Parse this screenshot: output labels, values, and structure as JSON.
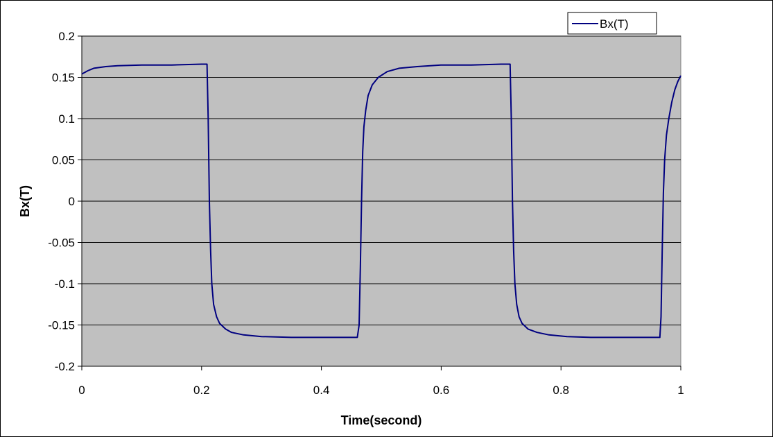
{
  "chart_data": {
    "type": "line",
    "title": "",
    "xlabel": "Time(second)",
    "ylabel": "Bx(T)",
    "xlim": [
      0,
      1
    ],
    "ylim": [
      -0.2,
      0.2
    ],
    "x_ticks": [
      "0",
      "0.2",
      "0.4",
      "0.6",
      "0.8",
      "1"
    ],
    "x_tick_values": [
      0,
      0.2,
      0.4,
      0.6,
      0.8,
      1
    ],
    "y_ticks": [
      "0.2",
      "0.15",
      "0.1",
      "0.05",
      "0",
      "-0.05",
      "-0.1",
      "-0.15",
      "-0.2"
    ],
    "y_tick_values": [
      0.2,
      0.15,
      0.1,
      0.05,
      0,
      -0.05,
      -0.1,
      -0.15,
      -0.2
    ],
    "grid": "horizontal",
    "legend_position": "top-right",
    "plot_background": "#c0c0c0",
    "series": [
      {
        "name": "Bx(T)",
        "color": "#000080",
        "x": [
          0,
          0.01,
          0.02,
          0.04,
          0.06,
          0.1,
          0.15,
          0.2,
          0.209,
          0.211,
          0.213,
          0.215,
          0.217,
          0.22,
          0.225,
          0.23,
          0.24,
          0.25,
          0.27,
          0.3,
          0.35,
          0.4,
          0.46,
          0.463,
          0.465,
          0.467,
          0.469,
          0.471,
          0.474,
          0.478,
          0.485,
          0.495,
          0.51,
          0.53,
          0.56,
          0.6,
          0.65,
          0.7,
          0.715,
          0.717,
          0.719,
          0.721,
          0.723,
          0.726,
          0.73,
          0.735,
          0.745,
          0.76,
          0.78,
          0.81,
          0.85,
          0.9,
          0.965,
          0.967,
          0.969,
          0.971,
          0.973,
          0.976,
          0.98,
          0.985,
          0.99,
          0.995,
          1
        ],
        "values": [
          0.154,
          0.158,
          0.161,
          0.163,
          0.164,
          0.165,
          0.165,
          0.166,
          0.166,
          0.1,
          0.0,
          -0.06,
          -0.1,
          -0.125,
          -0.14,
          -0.148,
          -0.155,
          -0.159,
          -0.162,
          -0.164,
          -0.165,
          -0.165,
          -0.165,
          -0.15,
          -0.08,
          0.0,
          0.06,
          0.09,
          0.11,
          0.128,
          0.141,
          0.15,
          0.157,
          0.161,
          0.163,
          0.165,
          0.165,
          0.166,
          0.166,
          0.1,
          0.0,
          -0.06,
          -0.1,
          -0.125,
          -0.14,
          -0.148,
          -0.155,
          -0.159,
          -0.162,
          -0.164,
          -0.165,
          -0.165,
          -0.165,
          -0.14,
          -0.06,
          0.01,
          0.05,
          0.08,
          0.1,
          0.12,
          0.135,
          0.145,
          0.152
        ]
      }
    ]
  }
}
